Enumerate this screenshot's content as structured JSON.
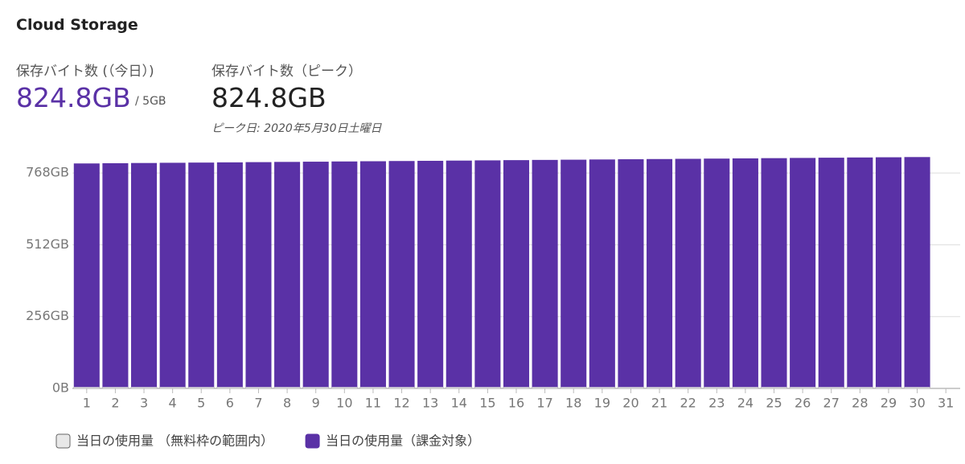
{
  "title": "Cloud Storage",
  "stats": [
    {
      "label": "保存バイト数 (（今日）)",
      "value": "824.8GB",
      "quota": "/ 5GB"
    },
    {
      "label": "保存バイト数（ピーク）",
      "value": "824.8GB",
      "note": "ピーク日: 2020年5月30日土曜日"
    }
  ],
  "chart_data": {
    "type": "bar",
    "stacked": true,
    "grid": true,
    "categories": [
      "1",
      "2",
      "3",
      "4",
      "5",
      "6",
      "7",
      "8",
      "9",
      "10",
      "11",
      "12",
      "13",
      "14",
      "15",
      "16",
      "17",
      "18",
      "19",
      "20",
      "21",
      "22",
      "23",
      "24",
      "25",
      "26",
      "27",
      "28",
      "29",
      "30",
      "31"
    ],
    "series": [
      {
        "name": "当日の使用量 （無料枠の範囲内）",
        "color": "#e8e8e8",
        "values": [
          5,
          5,
          5,
          5,
          5,
          5,
          5,
          5,
          5,
          5,
          5,
          5,
          5,
          5,
          5,
          5,
          5,
          5,
          5,
          5,
          5,
          5,
          5,
          5,
          5,
          5,
          5,
          5,
          5,
          5,
          null
        ]
      },
      {
        "name": "当日の使用量（課金対象）",
        "color": "#5a31a6",
        "values": [
          797,
          797.8,
          798.6,
          799.4,
          800.1,
          800.9,
          801.7,
          802.5,
          803.3,
          804.1,
          804.9,
          805.7,
          806.4,
          807.2,
          808,
          808.8,
          809.6,
          810.4,
          811.2,
          812,
          812.7,
          813.5,
          814.3,
          815.1,
          815.9,
          816.7,
          817.5,
          818.3,
          819,
          819.8,
          null
        ]
      }
    ],
    "ylim": [
      0,
      840
    ],
    "yticks": [
      {
        "value": 0,
        "label": "0B"
      },
      {
        "value": 256,
        "label": "256GB"
      },
      {
        "value": 512,
        "label": "512GB"
      },
      {
        "value": 768,
        "label": "768GB"
      }
    ]
  }
}
